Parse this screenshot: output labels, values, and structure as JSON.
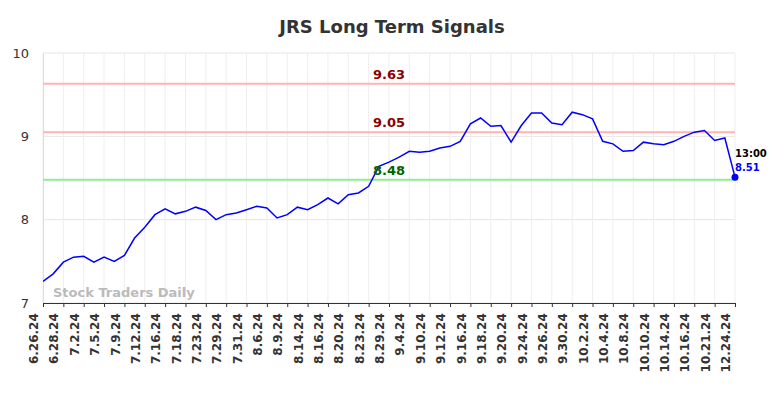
{
  "chart_data": {
    "type": "line",
    "title": "JRS Long Term Signals",
    "categories": [
      "6.26.24",
      null,
      "6.28.24",
      null,
      "7.2.24",
      null,
      "7.5.24",
      null,
      "7.9.24",
      null,
      "7.12.24",
      null,
      "7.16.24",
      null,
      "7.18.24",
      null,
      "7.23.24",
      null,
      "7.29.24",
      null,
      "7.31.24",
      null,
      "8.6.24",
      null,
      "8.9.24",
      null,
      "8.14.24",
      null,
      "8.16.24",
      null,
      "8.20.24",
      null,
      "8.23.24",
      null,
      "8.29.24",
      null,
      "9.4.24",
      null,
      "9.10.24",
      null,
      "9.12.24",
      null,
      "9.16.24",
      null,
      "9.18.24",
      null,
      "9.20.24",
      null,
      "9.24.24",
      null,
      "9.26.24",
      null,
      "9.30.24",
      null,
      "10.2.24",
      null,
      "10.4.24",
      null,
      "10.8.24",
      null,
      "10.10.24",
      null,
      "10.14.24",
      null,
      "10.16.24",
      null,
      "10.21.24",
      null,
      "12.24.24"
    ],
    "series": [
      {
        "name": "JRS",
        "color": "#0000ff",
        "values": [
          7.26,
          7.35,
          7.49,
          7.55,
          7.56,
          7.49,
          7.55,
          7.5,
          7.57,
          7.78,
          7.91,
          8.06,
          8.13,
          8.07,
          8.1,
          8.15,
          8.11,
          8.0,
          8.06,
          8.08,
          8.12,
          8.16,
          8.14,
          8.02,
          8.06,
          8.15,
          8.12,
          8.18,
          8.26,
          8.19,
          8.3,
          8.32,
          8.4,
          8.64,
          8.69,
          8.75,
          8.82,
          8.81,
          8.82,
          8.86,
          8.88,
          8.94,
          9.15,
          9.22,
          9.12,
          9.13,
          8.93,
          9.13,
          9.28,
          9.28,
          9.16,
          9.14,
          9.29,
          9.26,
          9.21,
          8.94,
          8.91,
          8.82,
          8.83,
          8.93,
          8.91,
          8.9,
          8.94,
          9.0,
          9.05,
          9.07,
          8.95,
          8.98,
          8.51
        ]
      }
    ],
    "ylim": [
      7,
      10
    ],
    "yticks": [
      7,
      8,
      9,
      10
    ],
    "grid": true,
    "reference_lines": [
      {
        "value": 9.63,
        "label": "9.63",
        "color": "#ffb3b3",
        "label_color": "#8b0000"
      },
      {
        "value": 9.05,
        "label": "9.05",
        "color": "#ffb3b3",
        "label_color": "#8b0000"
      },
      {
        "value": 8.48,
        "label": "8.48",
        "color": "#90ee90",
        "label_color": "#006400"
      }
    ],
    "annotations": [
      {
        "text": "13:00"
      },
      {
        "text": "8.51"
      }
    ],
    "watermark": "Stock Traders Daily"
  }
}
